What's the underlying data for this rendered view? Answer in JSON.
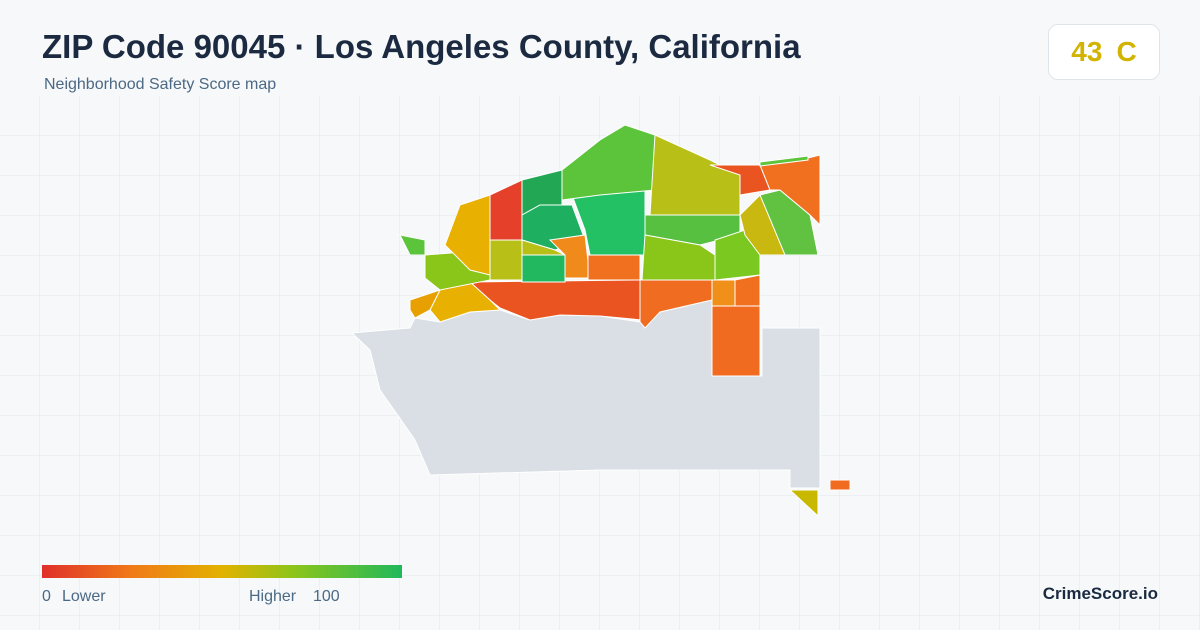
{
  "header": {
    "title": "ZIP Code 90045 · Los Angeles County, California",
    "subtitle": "Neighborhood Safety Score map"
  },
  "score": {
    "value": 43,
    "grade": "C"
  },
  "legend": {
    "min": 0,
    "min_label": "Lower",
    "max_label": "Higher",
    "max": 100
  },
  "brand": "CrimeScore.io"
}
